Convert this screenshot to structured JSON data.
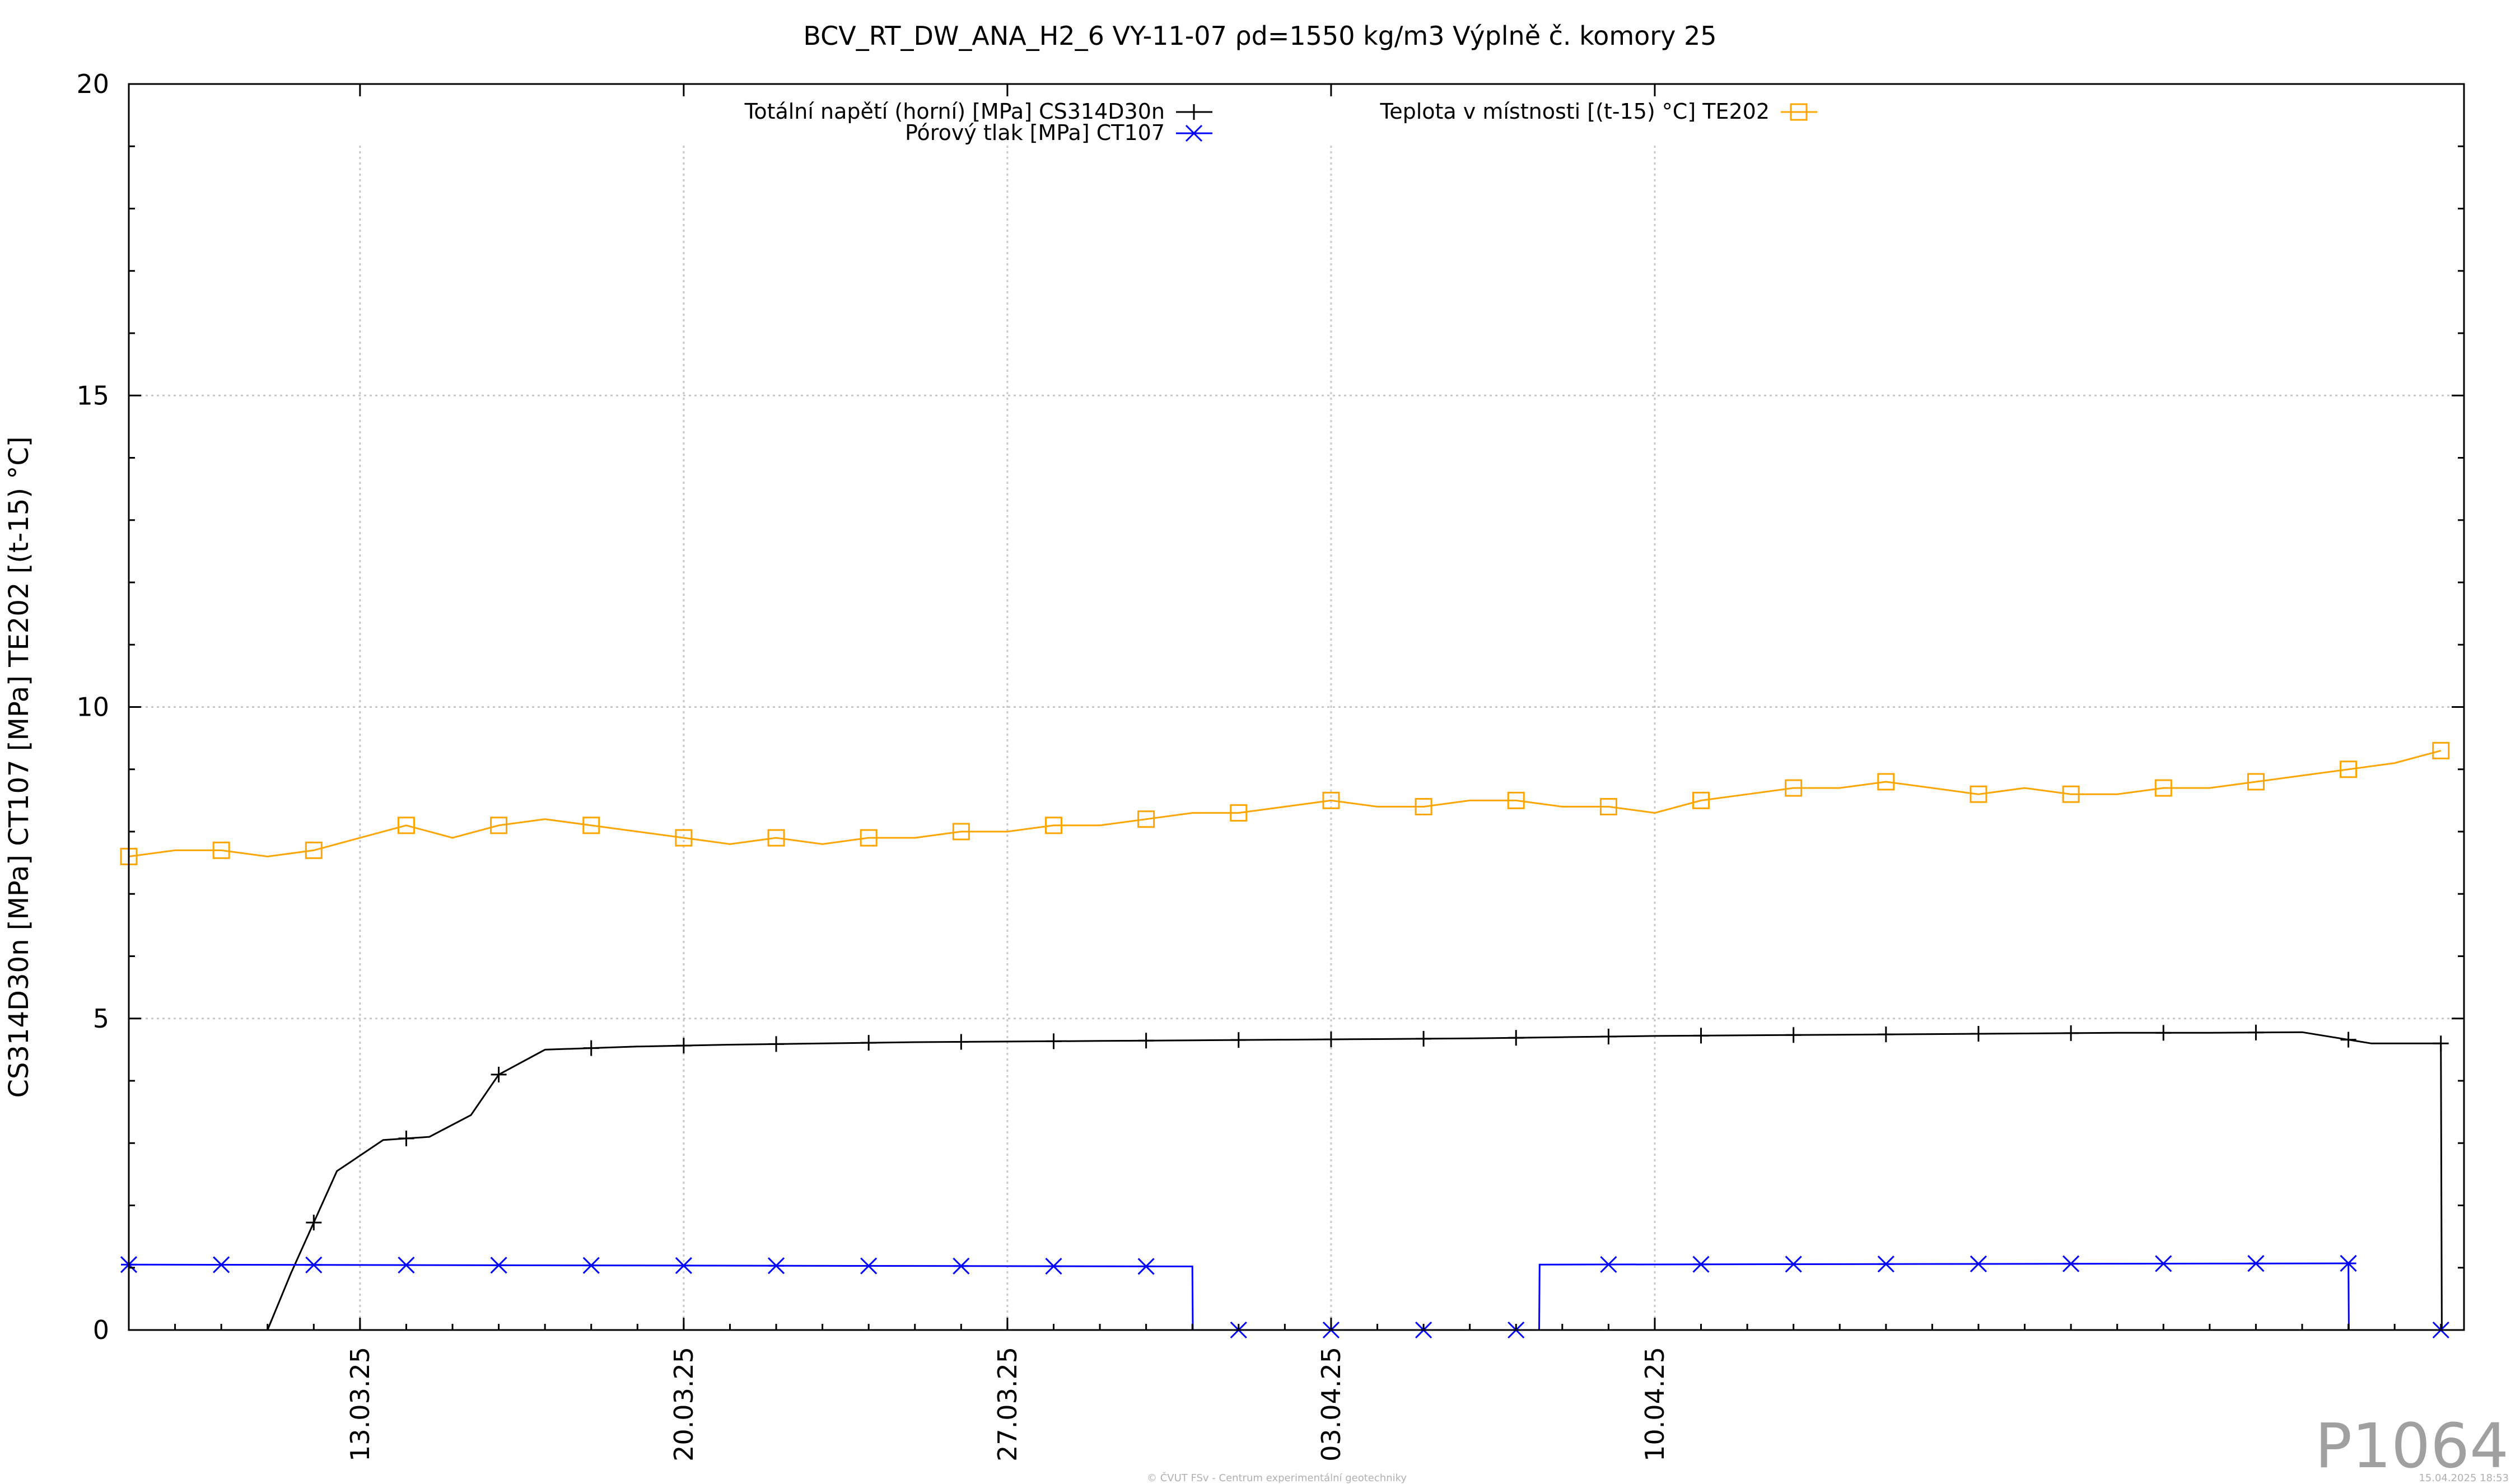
{
  "chart_data": {
    "type": "line",
    "title": "BCV_RT_DW_ANA_H2_6 VY-11-07 ρd=1550 kg/m3 Výplně č. komory 25",
    "ylabel": "CS314D30n [MPa] CT107 [MPa] TE202 [(t-15) °C]",
    "ylim": [
      0,
      20
    ],
    "yticks": [
      0,
      5,
      10,
      15,
      20
    ],
    "xlim": [
      2025.0,
      2025.1
    ],
    "x_domain_days": [
      "08.03.25",
      "15.04.25"
    ],
    "xticks": [
      "13.03.25",
      "20.03.25",
      "27.03.25",
      "03.04.25",
      "10.04.25"
    ],
    "grid": true,
    "legend_position": "top",
    "series": [
      {
        "name": "Totální napětí (horní) [MPa] CS314D30n",
        "color": "#000000",
        "marker": "plus",
        "x_days": [
          0,
          2.5,
          3.0,
          3.5,
          4.5,
          5.5,
          6.5,
          7.4,
          8.0,
          9.0,
          11,
          13,
          15,
          17,
          19,
          21,
          23,
          25,
          27,
          29,
          31,
          33,
          35,
          37,
          39,
          41,
          43,
          45,
          47,
          48.5,
          49.5,
          50.0,
          50.02
        ],
        "values": [
          null,
          null,
          0.0,
          0.9,
          2.55,
          3.05,
          3.1,
          3.45,
          4.1,
          4.5,
          4.55,
          4.58,
          4.6,
          4.62,
          4.63,
          4.64,
          4.65,
          4.66,
          4.67,
          4.68,
          4.7,
          4.72,
          4.73,
          4.74,
          4.75,
          4.76,
          4.77,
          4.77,
          4.78,
          4.6,
          4.6,
          4.6,
          0.0
        ]
      },
      {
        "name": "Pórový tlak [MPa] CT107",
        "color": "#0000ff",
        "marker": "star",
        "x_days": [
          0,
          23.0,
          23.01,
          30.5,
          30.51,
          48.0,
          48.01,
          50.5
        ],
        "values": [
          1.05,
          1.02,
          0.0,
          0.0,
          1.05,
          1.07,
          0.0,
          0.0
        ]
      },
      {
        "name": "Teplota v místnosti [(t-15) °C] TE202",
        "color": "#ffa500",
        "marker": "square",
        "x_days": [
          0,
          1,
          2,
          3,
          4,
          5,
          6,
          7,
          8,
          9,
          10,
          11,
          12,
          13,
          14,
          15,
          16,
          17,
          18,
          19,
          20,
          21,
          22,
          23,
          24,
          25,
          26,
          27,
          28,
          29,
          30,
          31,
          32,
          33,
          34,
          35,
          36,
          37,
          38,
          39,
          40,
          41,
          42,
          43,
          44,
          45,
          46,
          47,
          48,
          49,
          50
        ],
        "values": [
          7.6,
          7.7,
          7.7,
          7.6,
          7.7,
          7.9,
          8.1,
          7.9,
          8.1,
          8.2,
          8.1,
          8.0,
          7.9,
          7.8,
          7.9,
          7.8,
          7.9,
          7.9,
          8.0,
          8.0,
          8.1,
          8.1,
          8.2,
          8.3,
          8.3,
          8.4,
          8.5,
          8.4,
          8.4,
          8.5,
          8.5,
          8.4,
          8.4,
          8.3,
          8.5,
          8.6,
          8.7,
          8.7,
          8.8,
          8.7,
          8.6,
          8.7,
          8.6,
          8.6,
          8.7,
          8.7,
          8.8,
          8.9,
          9.0,
          9.1,
          9.3
        ]
      }
    ]
  },
  "watermark": "P1064",
  "footer": {
    "center": "© ČVUT FSv - Centrum experimentální geotechniky",
    "right": "15.04.2025 18:53"
  }
}
